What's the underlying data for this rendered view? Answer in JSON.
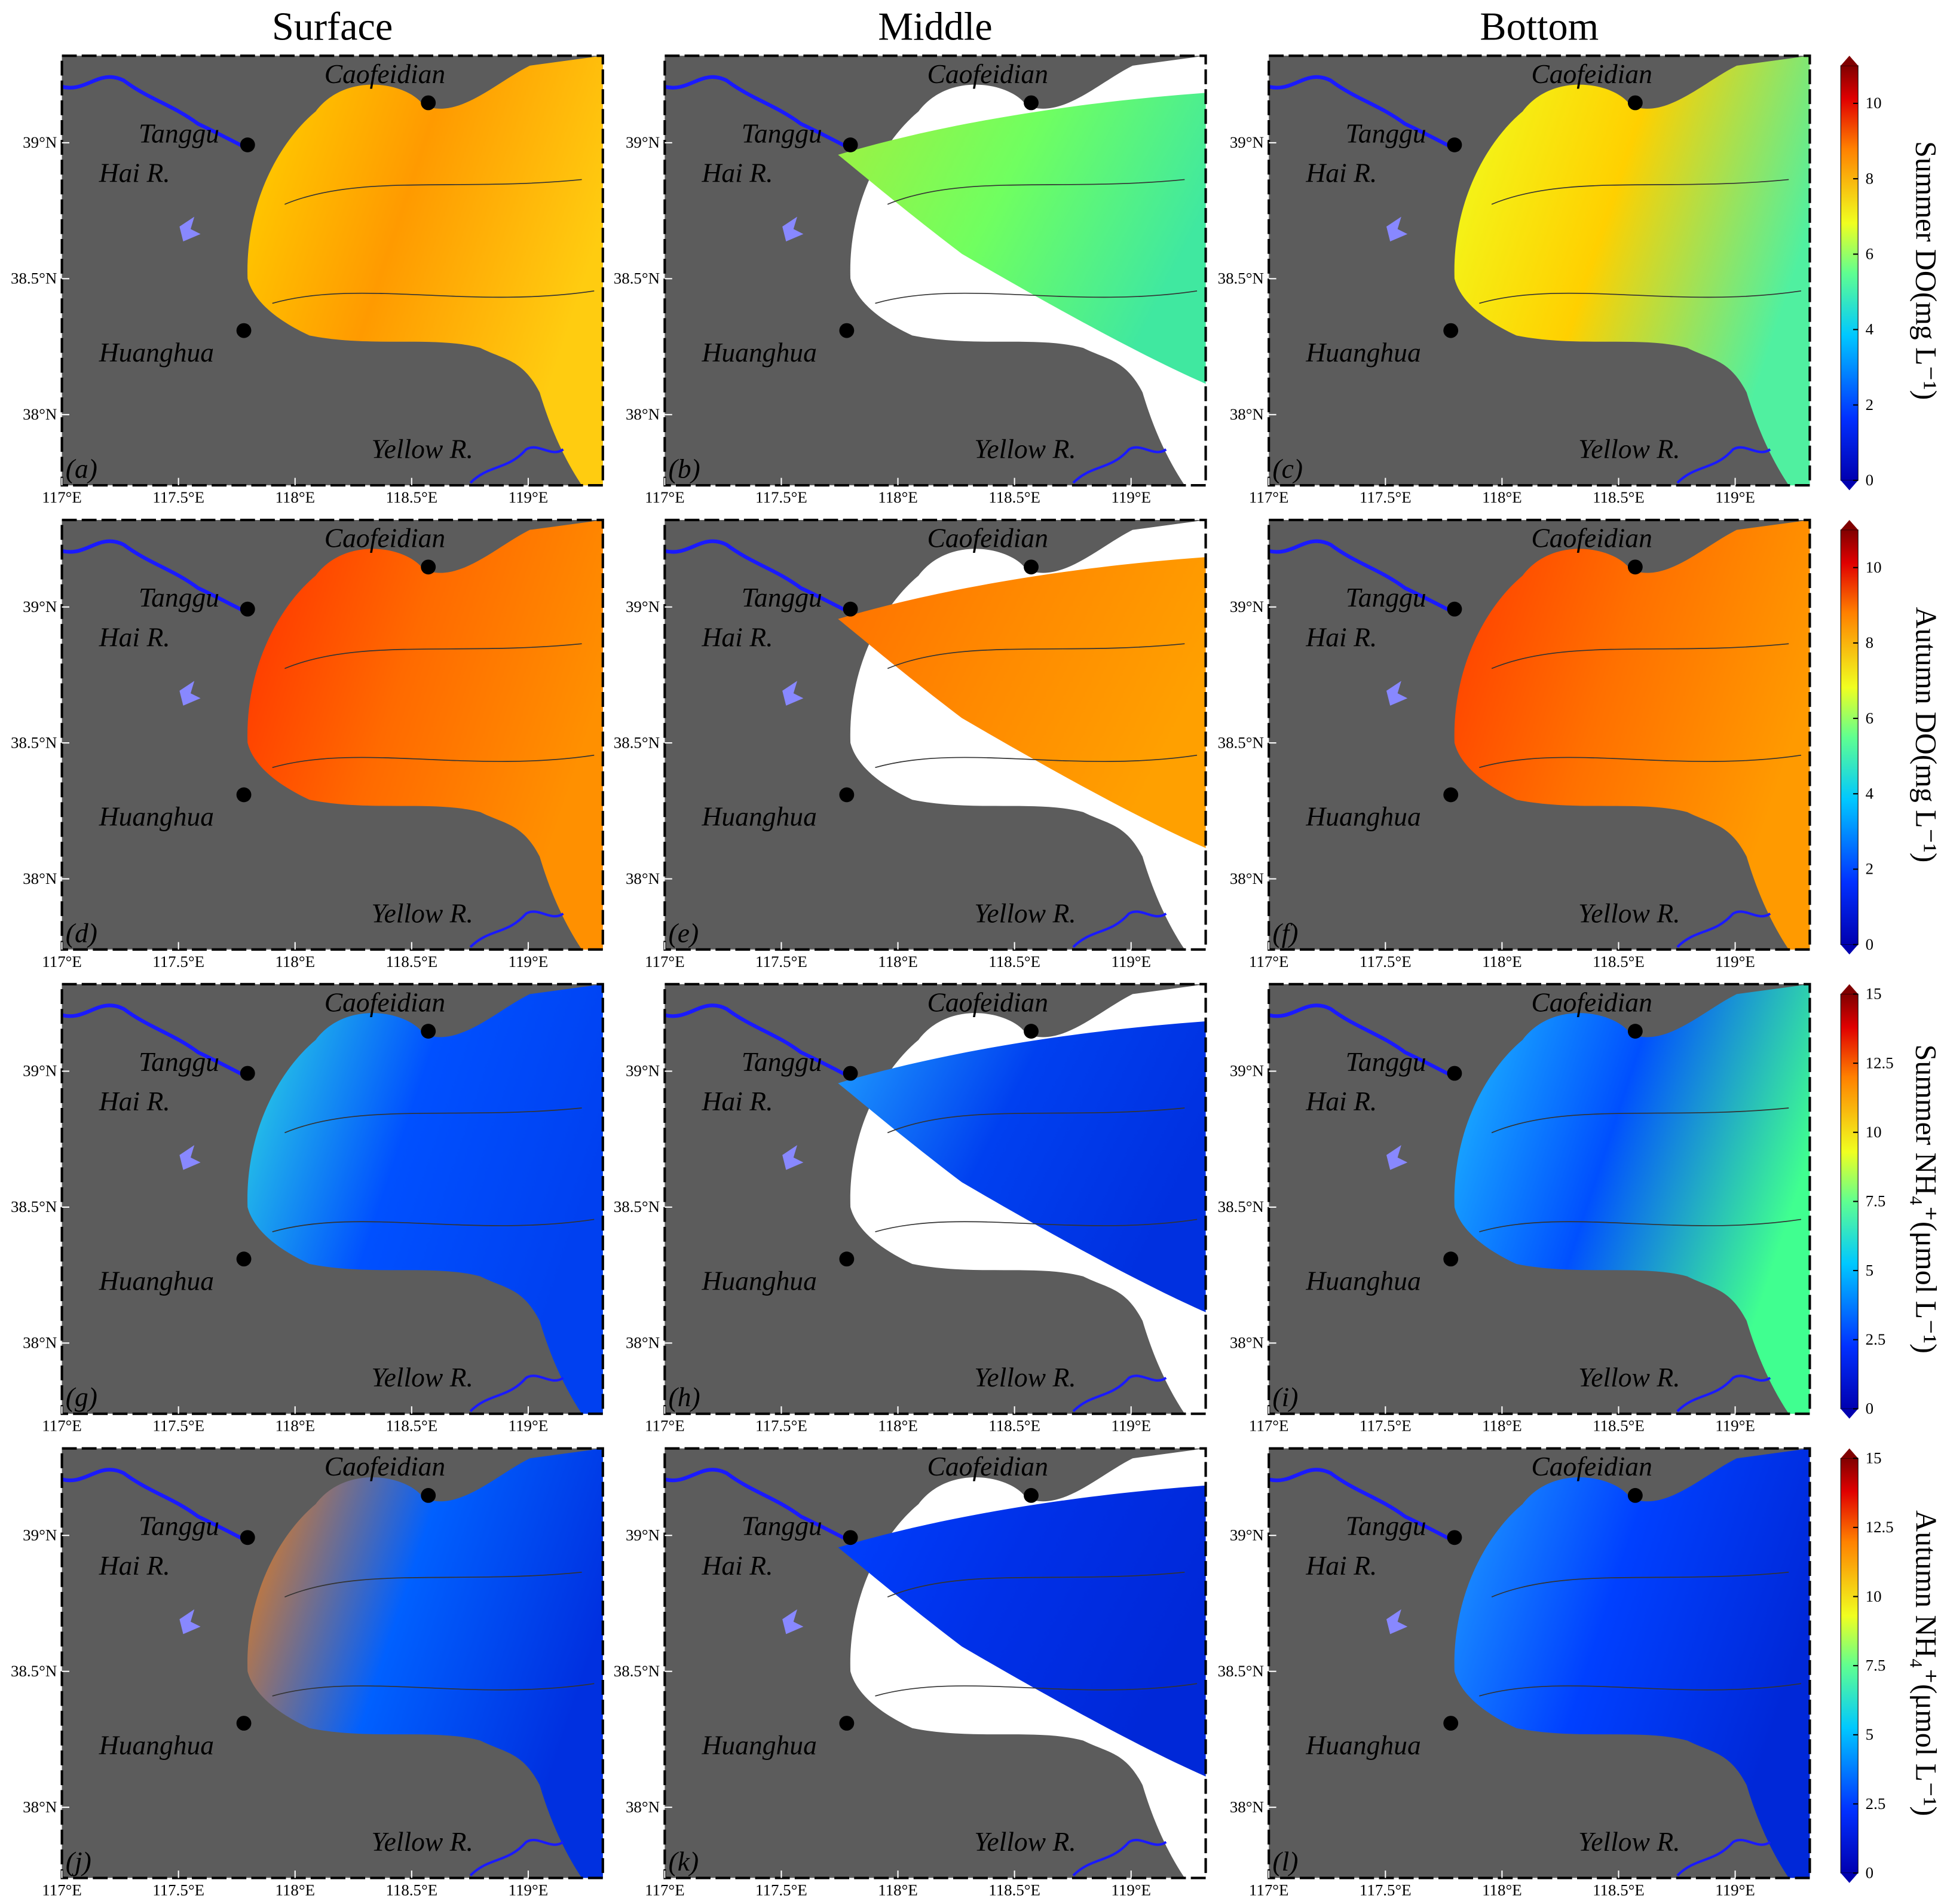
{
  "column_titles": [
    "Surface",
    "Middle",
    "Bottom"
  ],
  "row_labels": [
    "Summer DO(mg L⁻¹)",
    "Autumn DO(mg L⁻¹)",
    "Summer NH₄⁺(μmol L⁻¹)",
    "Autumn NH₄⁺(μmol L⁻¹)"
  ],
  "panel_letters": [
    "(a)",
    "(b)",
    "(c)",
    "(d)",
    "(e)",
    "(f)",
    "(g)",
    "(h)",
    "(i)",
    "(j)",
    "(k)",
    "(l)"
  ],
  "place_labels": [
    "Tanggu",
    "Caofeidian",
    "Hai R.",
    "Huanghua",
    "Yellow R."
  ],
  "xlim": [
    117,
    119.32
  ],
  "xticks": [
    {
      "value": 117,
      "label": "117°E"
    },
    {
      "value": 117.5,
      "label": "117.5°E"
    },
    {
      "value": 118,
      "label": "118°E"
    },
    {
      "value": 118.5,
      "label": "118.5°E"
    },
    {
      "value": 119,
      "label": "119°E"
    }
  ],
  "ylim": [
    37.74,
    39.32
  ],
  "yticks": [
    {
      "value": 39,
      "label": "39°N"
    },
    {
      "value": 38.5,
      "label": "38.5°N"
    },
    {
      "value": 38,
      "label": "38°N"
    }
  ],
  "colorbars": [
    {
      "lim": [
        0,
        11
      ],
      "ticks": [
        0,
        2,
        4,
        6,
        8,
        10
      ]
    },
    {
      "lim": [
        0,
        11
      ],
      "ticks": [
        0,
        2,
        4,
        6,
        8,
        10
      ]
    },
    {
      "lim": [
        0,
        15
      ],
      "ticks": [
        0,
        2.5,
        5,
        7.5,
        10,
        12.5,
        15
      ]
    },
    {
      "lim": [
        0,
        15
      ],
      "ticks": [
        0,
        2.5,
        5,
        7.5,
        10,
        12.5,
        15
      ]
    }
  ]
}
